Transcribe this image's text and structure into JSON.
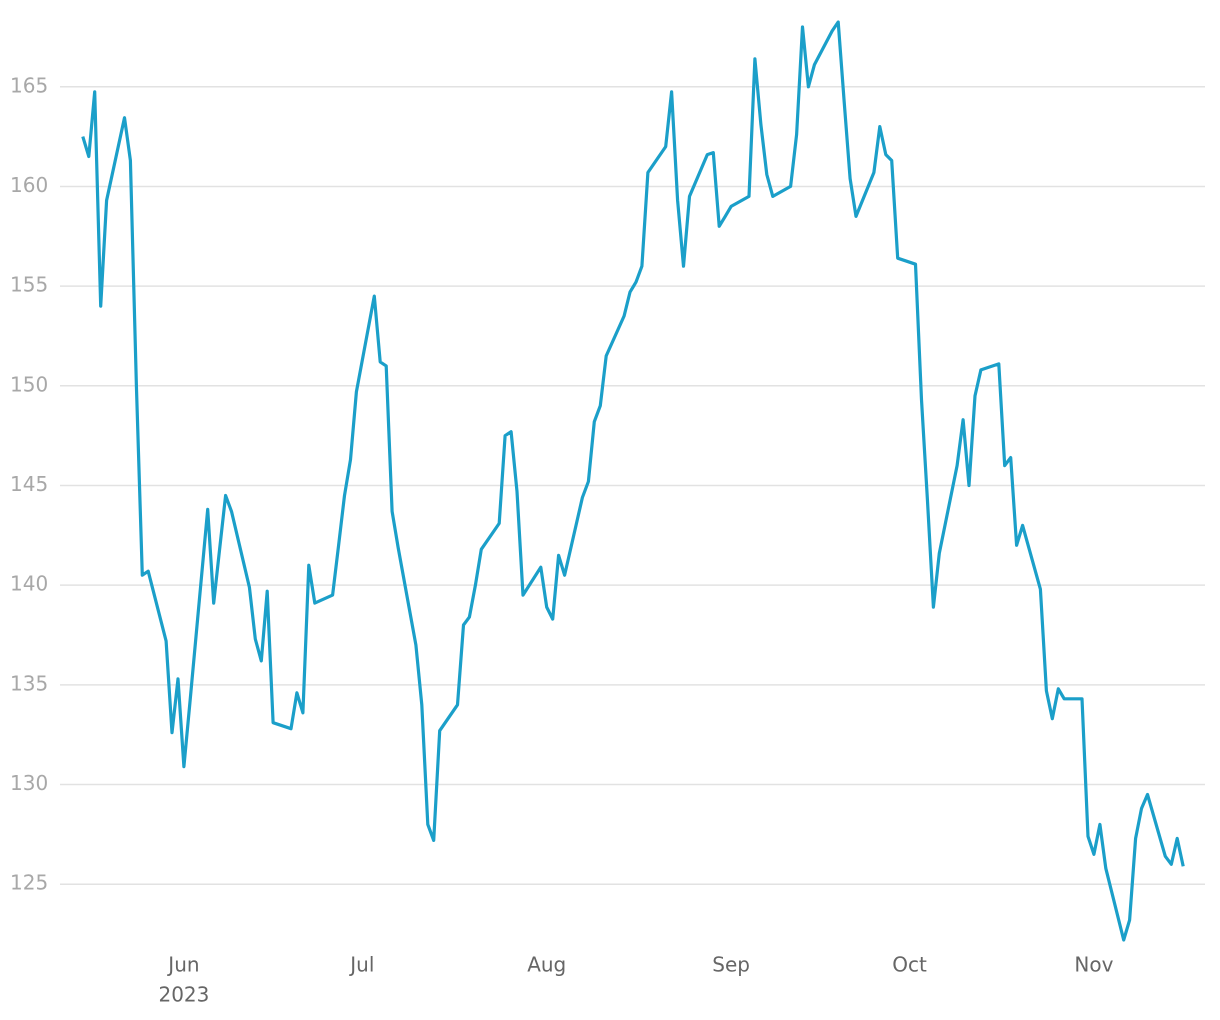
{
  "chart_data": {
    "type": "line",
    "x": [
      "2023-05-15",
      "2023-05-16",
      "2023-05-17",
      "2023-05-18",
      "2023-05-19",
      "2023-05-22",
      "2023-05-23",
      "2023-05-24",
      "2023-05-25",
      "2023-05-26",
      "2023-05-29",
      "2023-05-30",
      "2023-05-31",
      "2023-06-01",
      "2023-06-02",
      "2023-06-05",
      "2023-06-06",
      "2023-06-07",
      "2023-06-08",
      "2023-06-09",
      "2023-06-12",
      "2023-06-13",
      "2023-06-14",
      "2023-06-15",
      "2023-06-16",
      "2023-06-19",
      "2023-06-20",
      "2023-06-21",
      "2023-06-22",
      "2023-06-23",
      "2023-06-26",
      "2023-06-27",
      "2023-06-28",
      "2023-06-29",
      "2023-06-30",
      "2023-07-03",
      "2023-07-04",
      "2023-07-05",
      "2023-07-06",
      "2023-07-07",
      "2023-07-10",
      "2023-07-11",
      "2023-07-12",
      "2023-07-13",
      "2023-07-14",
      "2023-07-17",
      "2023-07-18",
      "2023-07-19",
      "2023-07-20",
      "2023-07-21",
      "2023-07-24",
      "2023-07-25",
      "2023-07-26",
      "2023-07-27",
      "2023-07-28",
      "2023-07-31",
      "2023-08-01",
      "2023-08-02",
      "2023-08-03",
      "2023-08-04",
      "2023-08-07",
      "2023-08-08",
      "2023-08-09",
      "2023-08-10",
      "2023-08-11",
      "2023-08-14",
      "2023-08-15",
      "2023-08-16",
      "2023-08-17",
      "2023-08-18",
      "2023-08-21",
      "2023-08-22",
      "2023-08-23",
      "2023-08-24",
      "2023-08-25",
      "2023-08-28",
      "2023-08-29",
      "2023-08-30",
      "2023-08-31",
      "2023-09-01",
      "2023-09-04",
      "2023-09-05",
      "2023-09-06",
      "2023-09-07",
      "2023-09-08",
      "2023-09-11",
      "2023-09-12",
      "2023-09-13",
      "2023-09-14",
      "2023-09-15",
      "2023-09-18",
      "2023-09-19",
      "2023-09-20",
      "2023-09-21",
      "2023-09-22",
      "2023-09-25",
      "2023-09-26",
      "2023-09-27",
      "2023-09-28",
      "2023-09-29",
      "2023-10-02",
      "2023-10-03",
      "2023-10-04",
      "2023-10-05",
      "2023-10-06",
      "2023-10-09",
      "2023-10-10",
      "2023-10-11",
      "2023-10-12",
      "2023-10-13",
      "2023-10-16",
      "2023-10-17",
      "2023-10-18",
      "2023-10-19",
      "2023-10-20",
      "2023-10-23",
      "2023-10-24",
      "2023-10-25",
      "2023-10-26",
      "2023-10-27",
      "2023-10-30",
      "2023-10-31",
      "2023-11-01",
      "2023-11-02",
      "2023-11-03",
      "2023-11-06",
      "2023-11-07",
      "2023-11-08",
      "2023-11-09",
      "2023-11-10",
      "2023-11-13",
      "2023-11-14",
      "2023-11-15",
      "2023-11-16"
    ],
    "values": [
      162.5,
      161.5,
      164.75,
      154.0,
      159.3,
      163.45,
      161.3,
      150.0,
      140.5,
      140.7,
      137.2,
      132.6,
      135.3,
      130.9,
      134.1,
      143.8,
      139.1,
      141.8,
      144.5,
      143.7,
      139.9,
      137.3,
      136.2,
      139.7,
      133.1,
      132.8,
      134.6,
      133.6,
      141.0,
      139.1,
      139.5,
      142.0,
      144.5,
      146.3,
      149.7,
      154.5,
      151.2,
      151.0,
      143.7,
      141.9,
      137.0,
      134.0,
      128.0,
      127.2,
      132.7,
      134.0,
      138.0,
      138.4,
      140.0,
      141.8,
      143.1,
      147.5,
      147.7,
      144.7,
      139.5,
      140.9,
      138.9,
      138.3,
      141.5,
      140.5,
      144.4,
      145.2,
      148.2,
      149.0,
      151.5,
      153.5,
      154.7,
      155.2,
      156.0,
      160.7,
      162.0,
      164.75,
      159.3,
      156.0,
      159.5,
      161.6,
      161.7,
      158.0,
      158.5,
      159.0,
      159.5,
      166.4,
      163.1,
      160.6,
      159.5,
      160.0,
      162.6,
      168.0,
      165.0,
      166.1,
      167.8,
      168.25,
      164.3,
      160.4,
      158.5,
      160.7,
      163.0,
      161.6,
      161.3,
      156.4,
      156.1,
      149.3,
      144.3,
      138.9,
      141.6,
      146.0,
      148.3,
      145.0,
      149.5,
      150.8,
      151.1,
      146.0,
      146.4,
      142.0,
      143.0,
      139.8,
      134.7,
      133.3,
      134.8,
      134.3,
      134.3,
      127.4,
      126.5,
      128.0,
      125.8,
      122.2,
      123.2,
      127.3,
      128.8,
      129.5,
      126.4,
      126.0,
      127.3,
      125.9
    ],
    "color": "#1b9fc9",
    "xlim": [
      "2023-05-02",
      "2023-11-19"
    ],
    "xticks": [
      {
        "value": "2023-06-01",
        "label": "Jun"
      },
      {
        "value": "2023-07-01",
        "label": "Jul"
      },
      {
        "value": "2023-08-01",
        "label": "Aug"
      },
      {
        "value": "2023-09-01",
        "label": "Sep"
      },
      {
        "value": "2023-10-01",
        "label": "Oct"
      },
      {
        "value": "2023-11-01",
        "label": "Nov"
      }
    ],
    "year_label": "2023",
    "ylim": [
      121.7,
      168.6
    ],
    "yticks": [
      125,
      130,
      135,
      140,
      145,
      150,
      155,
      160,
      165
    ],
    "grid": true
  }
}
